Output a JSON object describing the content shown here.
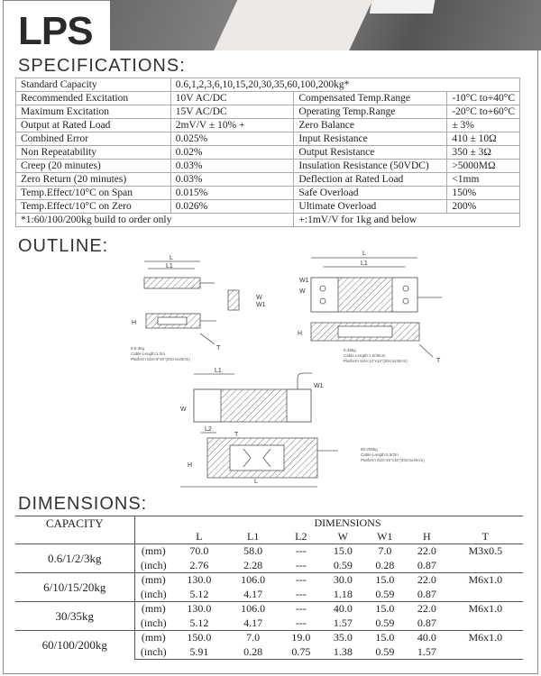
{
  "title": "LPS",
  "sections": {
    "specifications": "SPECIFICATIONS:",
    "outline": "OUTLINE:",
    "dimensions": "DIMENSIONS:"
  },
  "specs": {
    "standard_capacity": {
      "label": "Standard Capacity",
      "value": "0.6,1,2,3,6,10,15,20,30,35,60,100,200kg*"
    },
    "rows": [
      [
        "Recommended Excitation",
        "10V AC/DC",
        "Compensated Temp.Range",
        "-10°C to+40°C"
      ],
      [
        "Maximum Excitation",
        "15V AC/DC",
        "Operating Temp.Range",
        "-20°C to+60°C"
      ],
      [
        "Output at Rated Load",
        "2mV/V ± 10% +",
        "Zero Balance",
        "± 3%"
      ],
      [
        "Combined Error",
        "0.025%",
        "Input Resistance",
        "410 ± 10Ω"
      ],
      [
        "Non Repeatability",
        "0.02%",
        "Output Resistance",
        "350 ± 3Ω"
      ],
      [
        "Creep (20 minutes)",
        "0.03%",
        "Insulation Resistance (50VDC)",
        ">5000MΩ"
      ],
      [
        "Zero Return (20 minutes)",
        "0.03%",
        "Deflection at Rated Load",
        "<1mm"
      ],
      [
        "Temp.Effect/10°C on Span",
        "0.015%",
        "Safe Overload",
        "150%"
      ],
      [
        "Temp.Effect/10°C on Zero",
        "0.026%",
        "Ultimate Overload",
        "200%"
      ]
    ],
    "footnote_left": "*1:60/100/200kg build to order only",
    "footnote_right": "+:1mV/V for 1kg and below"
  },
  "outline": {
    "labels": {
      "L": "L",
      "L1": "L1",
      "L2": "L2",
      "W": "W",
      "W1": "W1",
      "H": "H",
      "T": "T"
    },
    "captions": [
      [
        "0.6-3kg",
        "Cable Length:1.0m",
        "Platform Size:8\"x8\"(20cmx20cm)"
      ],
      [
        "6-35kg",
        "Cable Length:1.5/46cm",
        "Platform Size:12\"x12\"(30cmx30cm)"
      ],
      [
        "60-200kg",
        "Cable Length:5.5/2m",
        "Platform Size:16\"x16\"(40cmx40cm)"
      ]
    ]
  },
  "dimensions": {
    "capacity_header": "CAPACITY",
    "dimensions_header": "DIMENSIONS",
    "columns": [
      "L",
      "L1",
      "L2",
      "W",
      "W1",
      "H",
      "T"
    ],
    "rows": [
      {
        "capacity": "0.6/1/2/3kg",
        "mm": [
          "70.0",
          "58.0",
          "---",
          "15.0",
          "7.0",
          "22.0",
          "M3x0.5"
        ],
        "inch": [
          "2.76",
          "2.28",
          "---",
          "0.59",
          "0.28",
          "0.87",
          ""
        ]
      },
      {
        "capacity": "6/10/15/20kg",
        "mm": [
          "130.0",
          "106.0",
          "---",
          "30.0",
          "15.0",
          "22.0",
          "M6x1.0"
        ],
        "inch": [
          "5.12",
          "4.17",
          "---",
          "1.18",
          "0.59",
          "0.87",
          ""
        ]
      },
      {
        "capacity": "30/35kg",
        "mm": [
          "130.0",
          "106.0",
          "---",
          "40.0",
          "15.0",
          "22.0",
          "M6x1.0"
        ],
        "inch": [
          "5.12",
          "4.17",
          "---",
          "1.57",
          "0.59",
          "0.87",
          ""
        ]
      },
      {
        "capacity": "60/100/200kg",
        "mm": [
          "150.0",
          "7.0",
          "19.0",
          "35.0",
          "15.0",
          "40.0",
          "M6x1.0"
        ],
        "inch": [
          "5.91",
          "0.28",
          "0.75",
          "1.38",
          "0.59",
          "1.57",
          ""
        ]
      }
    ],
    "units": {
      "mm": "(mm)",
      "inch": "(inch)"
    }
  }
}
